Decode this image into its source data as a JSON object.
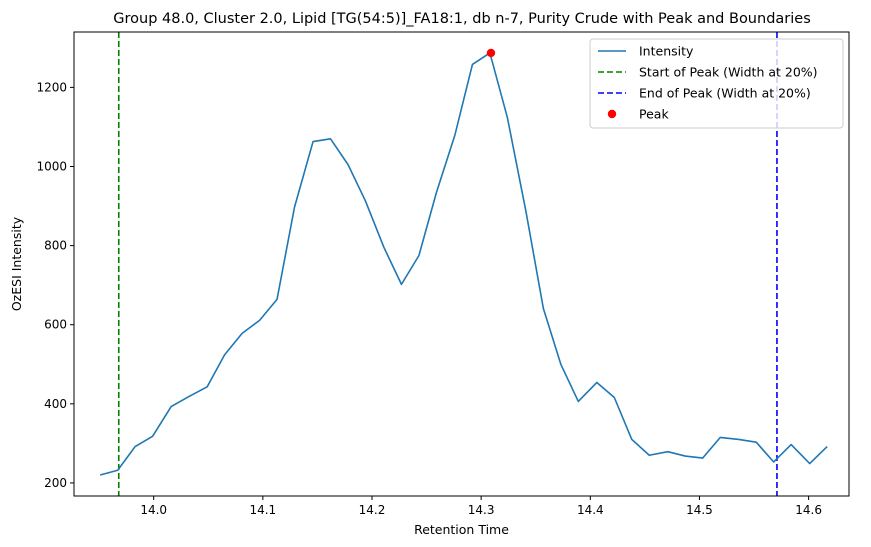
{
  "chart_data": {
    "type": "line",
    "title": "Group 48.0, Cluster 2.0, Lipid [TG(54:5)]_FA18:1, db n-7, Purity Crude with Peak and Boundaries",
    "xlabel": "Retention Time",
    "ylabel": "OzESI Intensity",
    "xlim": [
      13.927,
      14.637
    ],
    "ylim": [
      167,
      1340
    ],
    "xticks": [
      14.0,
      14.1,
      14.2,
      14.3,
      14.4,
      14.5,
      14.6
    ],
    "xtick_labels": [
      "14.0",
      "14.1",
      "14.2",
      "14.3",
      "14.4",
      "14.5",
      "14.6"
    ],
    "yticks": [
      200,
      400,
      600,
      800,
      1000,
      1200
    ],
    "ytick_labels": [
      "200",
      "400",
      "600",
      "800",
      "1000",
      "1200"
    ],
    "grid": false,
    "legend_position": "top-right",
    "series": [
      {
        "name": "Intensity",
        "color": "#1f77b4",
        "x": [
          13.951,
          13.967,
          13.983,
          13.999,
          14.016,
          14.032,
          14.049,
          14.065,
          14.081,
          14.097,
          14.113,
          14.129,
          14.146,
          14.162,
          14.178,
          14.194,
          14.211,
          14.227,
          14.243,
          14.259,
          14.276,
          14.292,
          14.308,
          14.324,
          14.341,
          14.357,
          14.373,
          14.389,
          14.406,
          14.422,
          14.438,
          14.454,
          14.471,
          14.487,
          14.503,
          14.519,
          14.536,
          14.552,
          14.568,
          14.584,
          14.601,
          14.617
        ],
        "y": [
          220,
          232,
          292,
          318,
          393,
          418,
          443,
          524,
          578,
          611,
          664,
          897,
          1063,
          1070,
          1005,
          913,
          795,
          702,
          775,
          934,
          1080,
          1258,
          1287,
          1124,
          887,
          641,
          500,
          406,
          454,
          416,
          310,
          270,
          279,
          268,
          263,
          315,
          310,
          303,
          253,
          297,
          249,
          292
        ]
      }
    ],
    "vlines": [
      {
        "name": "Start of Peak (Width at 20%)",
        "x": 13.968,
        "color": "#008000",
        "style": "dashed"
      },
      {
        "name": "End of Peak (Width at 20%)",
        "x": 14.571,
        "color": "#0000ff",
        "style": "dashed"
      }
    ],
    "peak": {
      "name": "Peak",
      "x": 14.309,
      "y": 1287,
      "color": "#ff0000"
    },
    "legend": [
      {
        "label": "Intensity",
        "kind": "line",
        "color": "#1f77b4"
      },
      {
        "label": "Start of Peak (Width at 20%)",
        "kind": "dashed",
        "color": "#008000"
      },
      {
        "label": "End of Peak (Width at 20%)",
        "kind": "dashed",
        "color": "#0000ff"
      },
      {
        "label": "Peak",
        "kind": "marker",
        "color": "#ff0000"
      }
    ]
  }
}
